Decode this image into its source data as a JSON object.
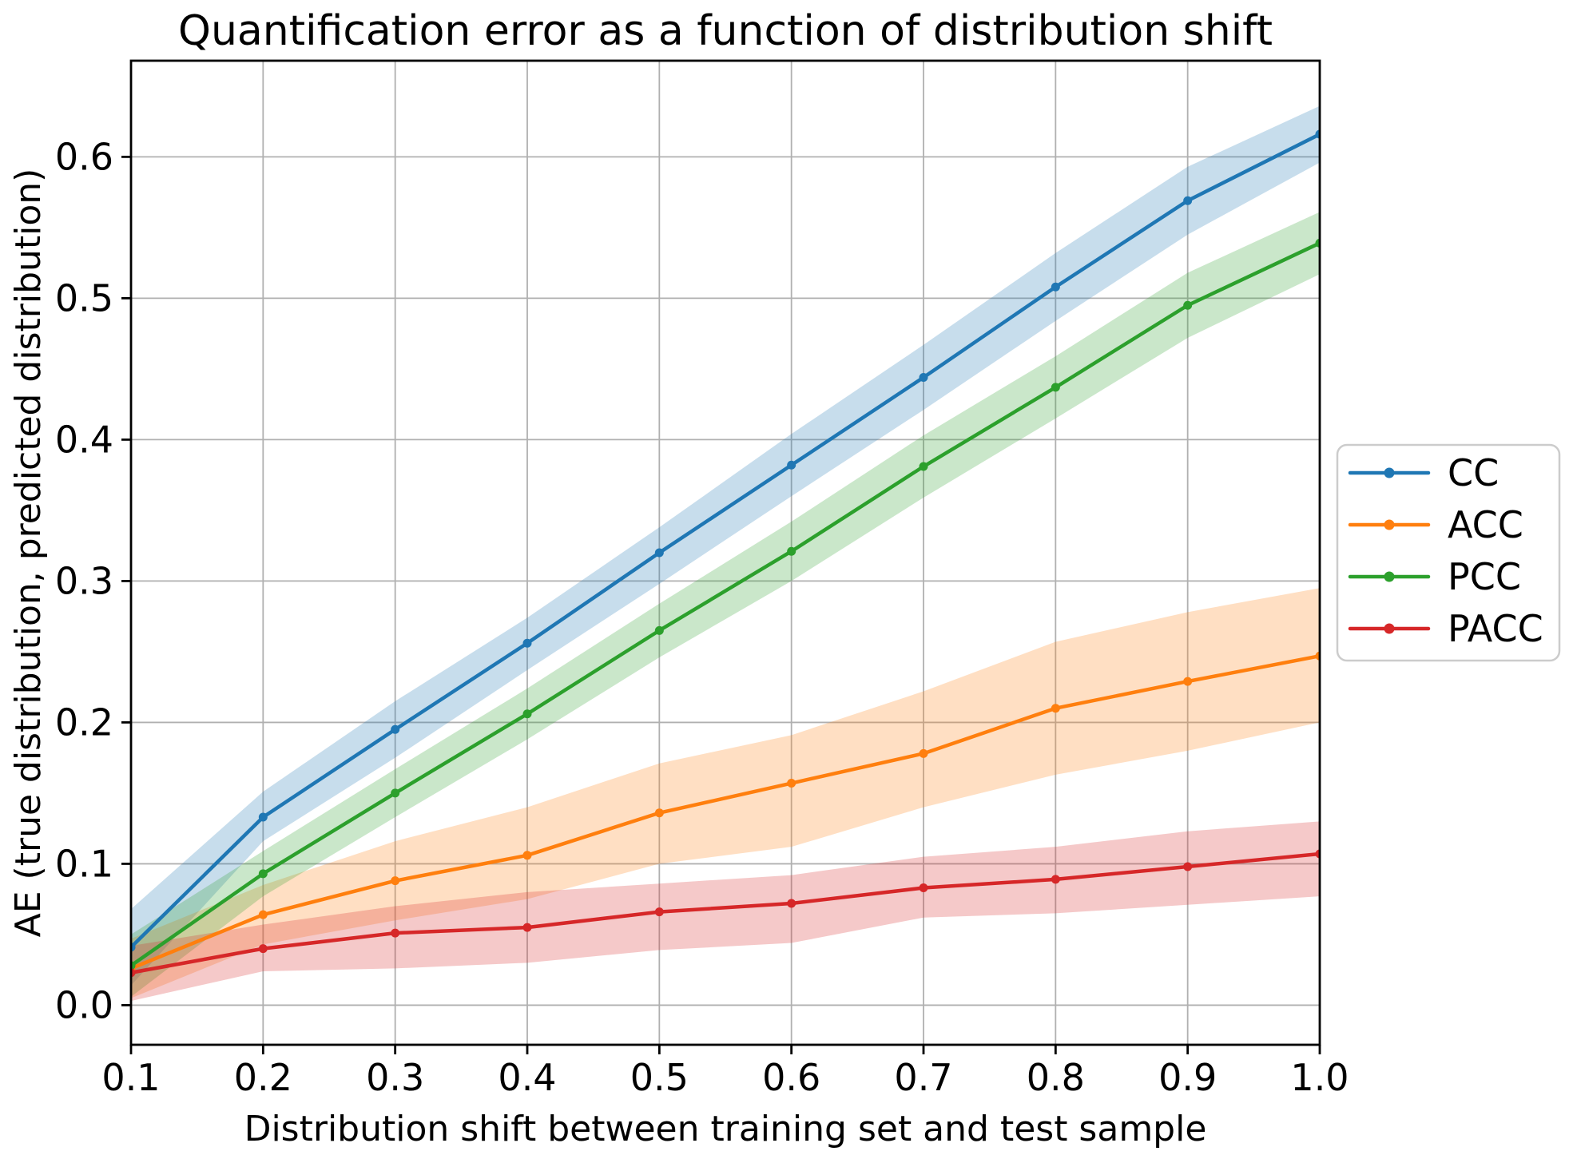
{
  "chart_data": {
    "type": "line",
    "title": "Quantification error as a function of distribution shift",
    "xlabel": "Distribution shift between training set and test sample",
    "ylabel": "AE (true distribution, predicted distribution)",
    "x": [
      0.1,
      0.2,
      0.3,
      0.4,
      0.5,
      0.6,
      0.7,
      0.8,
      0.9,
      1.0
    ],
    "x_tick_labels": [
      "0.1",
      "0.2",
      "0.3",
      "0.4",
      "0.5",
      "0.6",
      "0.7",
      "0.8",
      "0.9",
      "1.0"
    ],
    "y_ticks": [
      0.0,
      0.1,
      0.2,
      0.3,
      0.4,
      0.5,
      0.6
    ],
    "y_tick_labels": [
      "0.0",
      "0.1",
      "0.2",
      "0.3",
      "0.4",
      "0.5",
      "0.6"
    ],
    "xlim": [
      0.1,
      1.0
    ],
    "ylim": [
      -0.028,
      0.668
    ],
    "grid": true,
    "grid_color": "#b0b0b0",
    "background": "#ffffff",
    "spine_color": "#000000",
    "text_color": "#000000",
    "marker": "circle",
    "band_alpha": 0.25,
    "legend": {
      "position": "outside-right",
      "background": "#ffffff",
      "border_color": "#cccccc"
    },
    "series": [
      {
        "name": "CC",
        "color": "#1f77b4",
        "values": [
          0.041,
          0.133,
          0.195,
          0.256,
          0.32,
          0.382,
          0.444,
          0.508,
          0.569,
          0.616
        ],
        "band_lower": [
          0.014,
          0.116,
          0.175,
          0.237,
          0.298,
          0.36,
          0.421,
          0.484,
          0.545,
          0.596
        ],
        "band_upper": [
          0.068,
          0.151,
          0.215,
          0.274,
          0.338,
          0.404,
          0.467,
          0.532,
          0.593,
          0.636
        ]
      },
      {
        "name": "ACC",
        "color": "#ff7f0e",
        "values": [
          0.026,
          0.064,
          0.088,
          0.106,
          0.136,
          0.157,
          0.178,
          0.21,
          0.229,
          0.247
        ],
        "band_lower": [
          0.005,
          0.043,
          0.06,
          0.075,
          0.1,
          0.112,
          0.14,
          0.163,
          0.18,
          0.2
        ],
        "band_upper": [
          0.047,
          0.085,
          0.116,
          0.14,
          0.171,
          0.191,
          0.222,
          0.257,
          0.278,
          0.295
        ]
      },
      {
        "name": "PCC",
        "color": "#2ca02c",
        "values": [
          0.028,
          0.093,
          0.15,
          0.206,
          0.265,
          0.321,
          0.381,
          0.437,
          0.495,
          0.539
        ],
        "band_lower": [
          0.006,
          0.077,
          0.133,
          0.188,
          0.246,
          0.3,
          0.359,
          0.415,
          0.472,
          0.517
        ],
        "band_upper": [
          0.05,
          0.109,
          0.167,
          0.224,
          0.284,
          0.342,
          0.403,
          0.459,
          0.518,
          0.561
        ]
      },
      {
        "name": "PACC",
        "color": "#d62728",
        "values": [
          0.023,
          0.04,
          0.051,
          0.055,
          0.066,
          0.072,
          0.083,
          0.089,
          0.098,
          0.107
        ],
        "band_lower": [
          0.003,
          0.024,
          0.026,
          0.03,
          0.039,
          0.044,
          0.062,
          0.065,
          0.071,
          0.077
        ],
        "band_upper": [
          0.042,
          0.057,
          0.07,
          0.08,
          0.086,
          0.092,
          0.105,
          0.112,
          0.123,
          0.13
        ]
      }
    ]
  }
}
